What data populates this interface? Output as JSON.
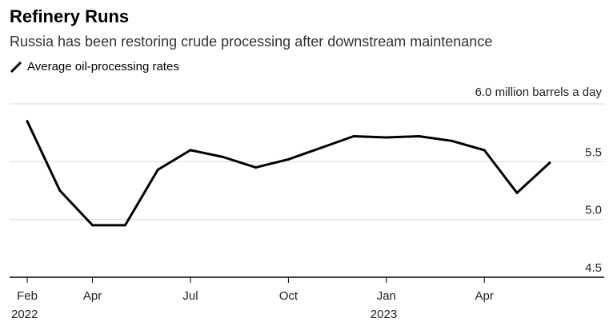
{
  "header": {
    "title": "Refinery Runs",
    "subtitle": "Russia has been restoring crude processing after downstream maintenance"
  },
  "legend": {
    "label": "Average oil-processing rates",
    "icon": "diagonal-line-icon"
  },
  "colors": {
    "line": "#000000",
    "grid": "#d9d9d9",
    "axis": "#000000",
    "text": "#222222"
  },
  "chart_data": {
    "type": "line",
    "title": "Refinery Runs",
    "subtitle": "Russia has been restoring crude processing after downstream maintenance",
    "unit_label": "6.0 million barrels a day",
    "x": [
      "2022-02",
      "2022-03",
      "2022-04",
      "2022-05",
      "2022-06",
      "2022-07",
      "2022-08",
      "2022-09",
      "2022-10",
      "2022-11",
      "2022-12",
      "2023-01",
      "2023-02",
      "2023-03",
      "2023-04",
      "2023-05",
      "2023-06"
    ],
    "series": [
      {
        "name": "Average oil-processing rates",
        "values": [
          5.85,
          5.25,
          4.95,
          4.95,
          5.43,
          5.6,
          5.54,
          5.45,
          5.52,
          5.62,
          5.72,
          5.71,
          5.72,
          5.68,
          5.6,
          5.23,
          5.49
        ]
      }
    ],
    "ylim": [
      4.5,
      6.0
    ],
    "yticks": [
      "5.5",
      "5.0",
      "4.5"
    ],
    "xticks": [
      {
        "label": "Feb",
        "year": "2022",
        "pos": 0
      },
      {
        "label": "Apr",
        "year": "",
        "pos": 2
      },
      {
        "label": "Jul",
        "year": "",
        "pos": 5
      },
      {
        "label": "Oct",
        "year": "",
        "pos": 8
      },
      {
        "label": "Jan",
        "year": "2023",
        "pos": 11
      },
      {
        "label": "Apr",
        "year": "",
        "pos": 14
      }
    ],
    "grid": true,
    "legend_position": "top-left"
  }
}
